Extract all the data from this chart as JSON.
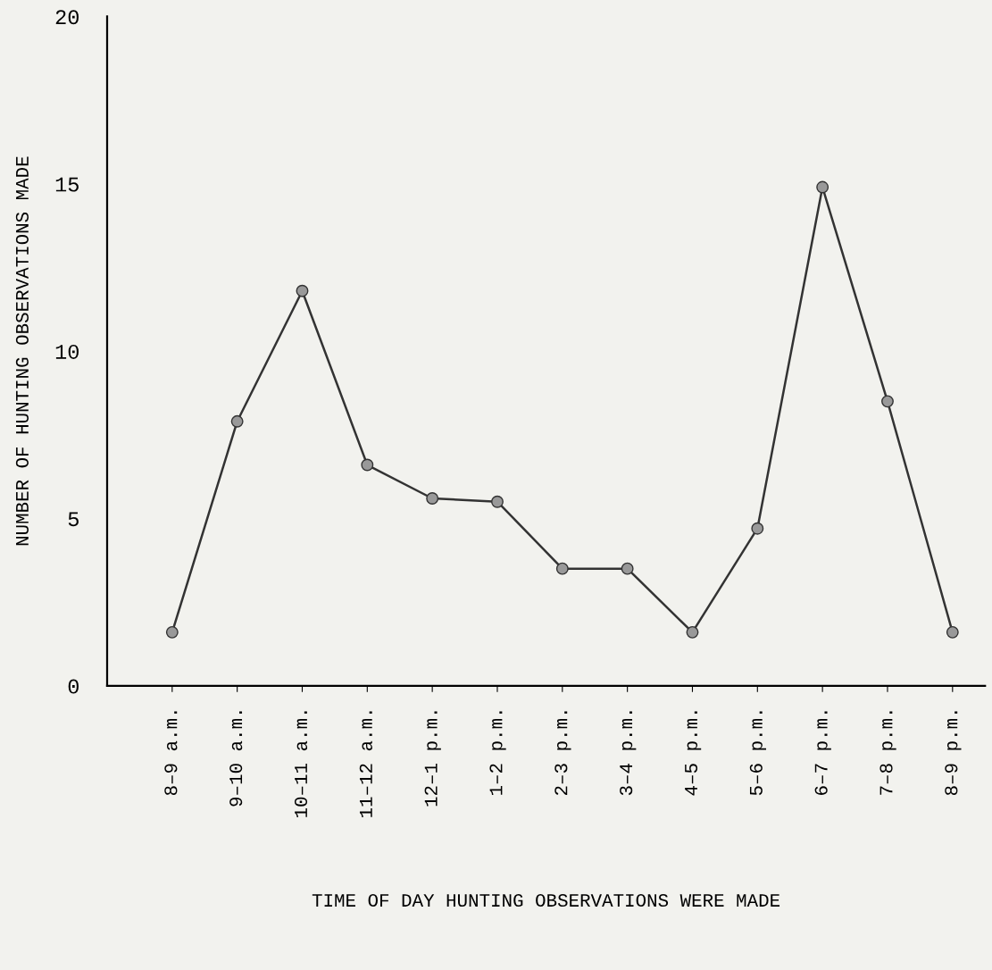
{
  "chart_data": {
    "type": "line",
    "xlabel": "TIME OF DAY HUNTING OBSERVATIONS WERE MADE",
    "ylabel": "NUMBER OF HUNTING OBSERVATIONS MADE",
    "categories": [
      "8–9 a.m.",
      "9–10 a.m.",
      "10–11 a.m.",
      "11–12 a.m.",
      "12–1 p.m.",
      "1–2 p.m.",
      "2–3 p.m.",
      "3–4 p.m.",
      "4–5 p.m.",
      "5–6 p.m.",
      "6–7 p.m.",
      "7–8 p.m.",
      "8–9 p.m."
    ],
    "values": [
      1.6,
      7.9,
      11.8,
      6.6,
      5.6,
      5.5,
      3.5,
      3.5,
      1.6,
      4.7,
      14.9,
      8.5,
      1.6
    ],
    "color": "#333333",
    "marker": "circle",
    "line_style": "solid",
    "grid": false,
    "legend": false,
    "ylim": [
      0,
      20
    ],
    "yticks": [
      0,
      5,
      10,
      15,
      20
    ]
  }
}
